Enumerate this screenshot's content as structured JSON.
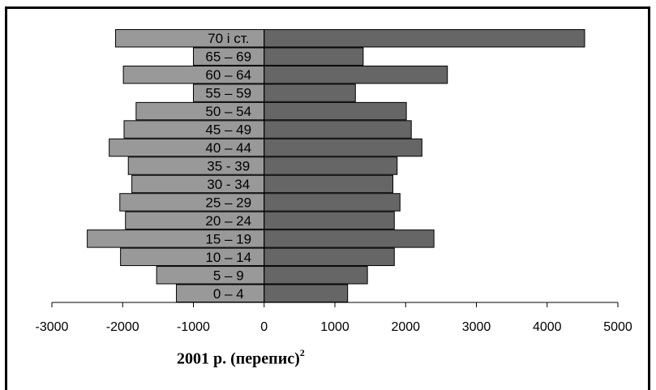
{
  "chart_data": {
    "type": "bar",
    "orientation": "horizontal",
    "subtype": "population-pyramid",
    "categories": [
      "0 – 4",
      "5 – 9",
      "10 – 14",
      "15 – 19",
      "20 – 24",
      "25 – 29",
      "30 - 34",
      "35 - 39",
      "40 – 44",
      "45 – 49",
      "50 – 54",
      "55 – 59",
      "60 – 64",
      "65 – 69",
      "70 і ст."
    ],
    "series": [
      {
        "values": [
          -1240,
          -1520,
          -2030,
          -2500,
          -1960,
          -2040,
          -1870,
          -1920,
          -2190,
          -1980,
          -1810,
          -1000,
          -1990,
          -1000,
          -2100
        ],
        "color": "#999999"
      },
      {
        "values": [
          1180,
          1460,
          1840,
          2400,
          1840,
          1920,
          1820,
          1880,
          2230,
          2080,
          2010,
          1290,
          2590,
          1400,
          4530
        ],
        "color": "#666666"
      }
    ],
    "xlim": [
      -3000,
      5000
    ],
    "xticks": [
      "-3000",
      "-2000",
      "-1000",
      "0",
      "1000",
      "2000",
      "3000",
      "4000",
      "5000"
    ],
    "title": "",
    "xlabel": "",
    "ylabel": "",
    "grid": false,
    "legend": "none"
  },
  "caption": {
    "text": "2001 р. (перепис)",
    "superscript": "2"
  }
}
